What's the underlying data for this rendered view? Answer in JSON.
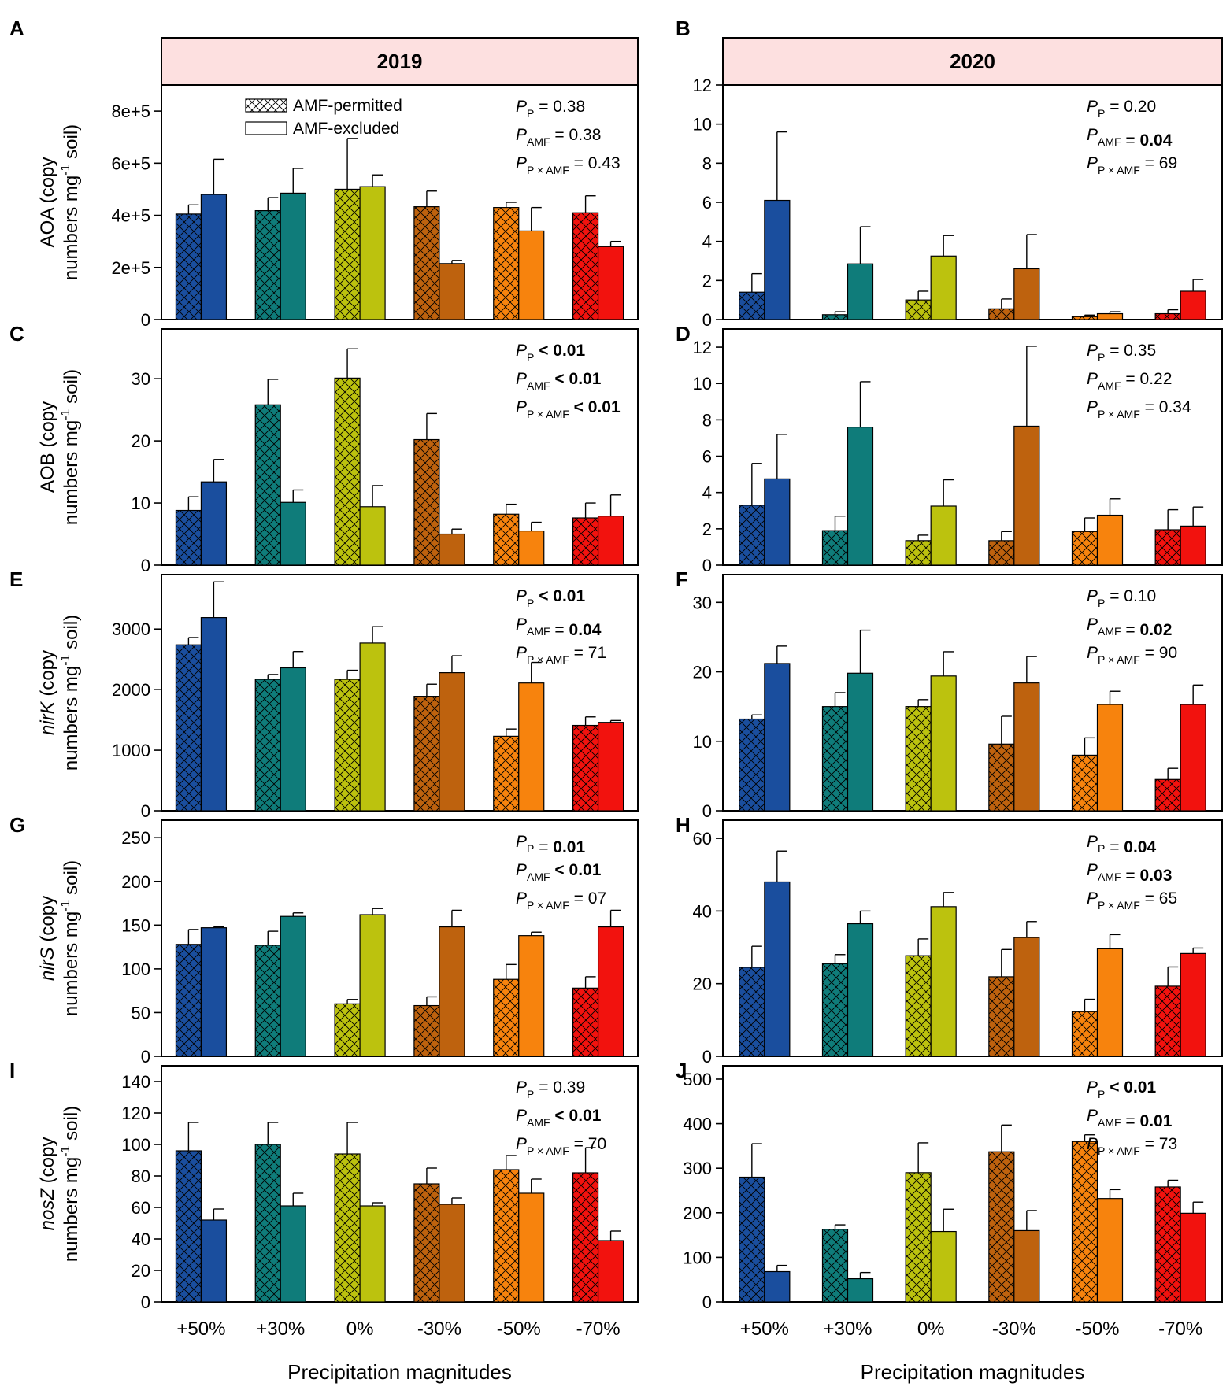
{
  "chart_data": [
    {
      "panel": "A",
      "type": "bar",
      "year": "2019",
      "ylim": [
        0,
        900000
      ],
      "yticks": [
        0,
        200000,
        400000,
        600000,
        800000
      ],
      "ytick_labels": [
        "0",
        "2e+5",
        "4e+5",
        "6e+5",
        "8e+5"
      ],
      "ylabel": {
        "pre": "",
        "italic": "",
        "post": "AOA (copy",
        "line2": "numbers mg",
        "sup": "-1",
        "tail": " soil)"
      },
      "categories": [
        "+50%",
        "+30%",
        "0%",
        "-30%",
        "-50%",
        "-70%"
      ],
      "series": [
        {
          "name": "AMF-permitted",
          "values": [
            405000,
            418000,
            500000,
            433000,
            430000,
            410000
          ],
          "errors": [
            35000,
            50000,
            195000,
            60000,
            20000,
            65000
          ]
        },
        {
          "name": "AMF-excluded",
          "values": [
            480000,
            485000,
            510000,
            215000,
            340000,
            280000
          ],
          "errors": [
            135000,
            95000,
            45000,
            12000,
            90000,
            20000
          ]
        }
      ],
      "stats": [
        {
          "sub": "P",
          "val": "0.38",
          "bold": false
        },
        {
          "sub": "AMF",
          "val": "0.38",
          "bold": false
        },
        {
          "sub": "P × AMF",
          "val": "0.43",
          "bold": false
        }
      ]
    },
    {
      "panel": "B",
      "type": "bar",
      "year": "2020",
      "ylim": [
        0,
        12
      ],
      "yticks": [
        0,
        2,
        4,
        6,
        8,
        10,
        12
      ],
      "ytick_labels": [
        "0",
        "2",
        "4",
        "6",
        "8",
        "10",
        "12"
      ],
      "categories": [
        "+50%",
        "+30%",
        "0%",
        "-30%",
        "-50%",
        "-70%"
      ],
      "series": [
        {
          "name": "AMF-permitted",
          "values": [
            1.4,
            0.25,
            1.0,
            0.55,
            0.15,
            0.3
          ],
          "errors": [
            0.95,
            0.15,
            0.45,
            0.5,
            0.08,
            0.2
          ]
        },
        {
          "name": "AMF-excluded",
          "values": [
            6.1,
            2.85,
            3.25,
            2.6,
            0.3,
            1.45
          ],
          "errors": [
            3.5,
            1.9,
            1.05,
            1.75,
            0.1,
            0.6
          ]
        }
      ],
      "stats": [
        {
          "sub": "P",
          "val": "0.20",
          "bold": false
        },
        {
          "sub": "AMF",
          "val": "0.04",
          "bold": true
        },
        {
          "sub": "P × AMF",
          "val": "69",
          "bold": false
        }
      ]
    },
    {
      "panel": "C",
      "type": "bar",
      "ylim": [
        0,
        38
      ],
      "yticks": [
        0,
        10,
        20,
        30
      ],
      "ytick_labels": [
        "0",
        "10",
        "20",
        "30"
      ],
      "ylabel": {
        "pre": "",
        "italic": "",
        "post": "AOB (copy",
        "line2": "numbers mg",
        "sup": "-1",
        "tail": " soil)"
      },
      "categories": [
        "+50%",
        "+30%",
        "0%",
        "-30%",
        "-50%",
        "-70%"
      ],
      "series": [
        {
          "name": "AMF-permitted",
          "values": [
            8.8,
            25.8,
            30.1,
            20.2,
            8.2,
            7.6
          ],
          "errors": [
            2.2,
            4.1,
            4.7,
            4.2,
            1.6,
            2.4
          ]
        },
        {
          "name": "AMF-excluded",
          "values": [
            13.4,
            10.1,
            9.4,
            5.0,
            5.5,
            7.9
          ],
          "errors": [
            3.6,
            2.0,
            3.4,
            0.8,
            1.4,
            3.4
          ]
        }
      ],
      "stats": [
        {
          "sub": "P",
          "val": "< 0.01",
          "bold": true,
          "op": ""
        },
        {
          "sub": "AMF",
          "val": "< 0.01",
          "bold": true,
          "op": ""
        },
        {
          "sub": "P × AMF",
          "val": "< 0.01",
          "bold": true,
          "op": ""
        }
      ]
    },
    {
      "panel": "D",
      "type": "bar",
      "ylim": [
        0,
        13
      ],
      "yticks": [
        0,
        2,
        4,
        6,
        8,
        10,
        12
      ],
      "ytick_labels": [
        "0",
        "2",
        "4",
        "6",
        "8",
        "10",
        "12"
      ],
      "categories": [
        "+50%",
        "+30%",
        "0%",
        "-30%",
        "-50%",
        "-70%"
      ],
      "series": [
        {
          "name": "AMF-permitted",
          "values": [
            3.3,
            1.9,
            1.35,
            1.35,
            1.85,
            1.95
          ],
          "errors": [
            2.3,
            0.8,
            0.3,
            0.5,
            0.75,
            1.1
          ]
        },
        {
          "name": "AMF-excluded",
          "values": [
            4.75,
            7.6,
            3.25,
            7.65,
            2.75,
            2.15
          ],
          "errors": [
            2.45,
            2.5,
            1.45,
            4.4,
            0.9,
            1.05
          ]
        }
      ],
      "stats": [
        {
          "sub": "P",
          "val": "0.35",
          "bold": false
        },
        {
          "sub": "AMF",
          "val": "0.22",
          "bold": false
        },
        {
          "sub": "P × AMF",
          "val": "0.34",
          "bold": false
        }
      ]
    },
    {
      "panel": "E",
      "type": "bar",
      "ylim": [
        0,
        3900
      ],
      "yticks": [
        0,
        1000,
        2000,
        3000
      ],
      "ytick_labels": [
        "0",
        "1000",
        "2000",
        "3000"
      ],
      "ylabel": {
        "pre": "",
        "italic": "nirK",
        "post": " (copy",
        "line2": "numbers mg",
        "sup": "-1",
        "tail": " soil)"
      },
      "categories": [
        "+50%",
        "+30%",
        "0%",
        "-30%",
        "-50%",
        "-70%"
      ],
      "series": [
        {
          "name": "AMF-permitted",
          "values": [
            2740,
            2170,
            2170,
            1890,
            1230,
            1410
          ],
          "errors": [
            120,
            80,
            150,
            200,
            120,
            140
          ]
        },
        {
          "name": "AMF-excluded",
          "values": [
            3190,
            2360,
            2770,
            2280,
            2110,
            1460
          ],
          "errors": [
            590,
            270,
            270,
            280,
            340,
            30
          ]
        }
      ],
      "stats": [
        {
          "sub": "P",
          "val": "< 0.01",
          "bold": true,
          "op": ""
        },
        {
          "sub": "AMF",
          "val": "0.04",
          "bold": true
        },
        {
          "sub": "P × AMF",
          "val": "71",
          "bold": false
        }
      ]
    },
    {
      "panel": "F",
      "type": "bar",
      "ylim": [
        0,
        34
      ],
      "yticks": [
        0,
        10,
        20,
        30
      ],
      "ytick_labels": [
        "0",
        "10",
        "20",
        "30"
      ],
      "categories": [
        "+50%",
        "+30%",
        "0%",
        "-30%",
        "-50%",
        "-70%"
      ],
      "series": [
        {
          "name": "AMF-permitted",
          "values": [
            13.2,
            15.0,
            15.0,
            9.6,
            8.0,
            4.5
          ],
          "errors": [
            0.6,
            2.0,
            1.0,
            4.0,
            2.5,
            1.6
          ]
        },
        {
          "name": "AMF-excluded",
          "values": [
            21.2,
            19.8,
            19.4,
            18.4,
            15.3,
            15.3
          ],
          "errors": [
            2.5,
            6.2,
            3.5,
            3.8,
            1.9,
            2.8
          ]
        }
      ],
      "stats": [
        {
          "sub": "P",
          "val": "0.10",
          "bold": false
        },
        {
          "sub": "AMF",
          "val": "0.02",
          "bold": true
        },
        {
          "sub": "P × AMF",
          "val": "90",
          "bold": false
        }
      ]
    },
    {
      "panel": "G",
      "type": "bar",
      "ylim": [
        0,
        270
      ],
      "yticks": [
        0,
        50,
        100,
        150,
        200,
        250
      ],
      "ytick_labels": [
        "0",
        "50",
        "100",
        "150",
        "200",
        "250"
      ],
      "ylabel": {
        "pre": "",
        "italic": "nirS",
        "post": " (copy",
        "line2": "numbers mg",
        "sup": "-1",
        "tail": " soil)"
      },
      "categories": [
        "+50%",
        "+30%",
        "0%",
        "-30%",
        "-50%",
        "-70%"
      ],
      "series": [
        {
          "name": "AMF-permitted",
          "values": [
            128,
            127,
            60,
            58,
            88,
            78
          ],
          "errors": [
            17,
            16,
            5,
            10,
            17,
            13
          ]
        },
        {
          "name": "AMF-excluded",
          "values": [
            147,
            160,
            162,
            148,
            138,
            148
          ],
          "errors": [
            1,
            4,
            7,
            19,
            4,
            19
          ]
        }
      ],
      "stats": [
        {
          "sub": "P",
          "val": "0.01",
          "bold": true
        },
        {
          "sub": "AMF",
          "val": "< 0.01",
          "bold": true,
          "op": ""
        },
        {
          "sub": "P × AMF",
          "val": "07",
          "bold": false
        }
      ]
    },
    {
      "panel": "H",
      "type": "bar",
      "ylim": [
        0,
        65
      ],
      "yticks": [
        0,
        20,
        40,
        60
      ],
      "ytick_labels": [
        "0",
        "20",
        "40",
        "60"
      ],
      "categories": [
        "+50%",
        "+30%",
        "0%",
        "-30%",
        "-50%",
        "-70%"
      ],
      "series": [
        {
          "name": "AMF-permitted",
          "values": [
            24.5,
            25.5,
            27.7,
            21.9,
            12.3,
            19.3
          ],
          "errors": [
            5.8,
            2.5,
            4.6,
            7.5,
            3.4,
            5.3
          ]
        },
        {
          "name": "AMF-excluded",
          "values": [
            48.0,
            36.5,
            41.2,
            32.7,
            29.6,
            28.3
          ],
          "errors": [
            8.5,
            3.5,
            3.9,
            4.4,
            3.9,
            1.5
          ]
        }
      ],
      "stats": [
        {
          "sub": "P",
          "val": "0.04",
          "bold": true
        },
        {
          "sub": "AMF",
          "val": "0.03",
          "bold": true
        },
        {
          "sub": "P × AMF",
          "val": "65",
          "bold": false
        }
      ]
    },
    {
      "panel": "I",
      "type": "bar",
      "ylim": [
        0,
        150
      ],
      "yticks": [
        0,
        20,
        40,
        60,
        80,
        100,
        120,
        140
      ],
      "ytick_labels": [
        "0",
        "20",
        "40",
        "60",
        "80",
        "100",
        "120",
        "140"
      ],
      "ylabel": {
        "pre": "",
        "italic": "nosZ",
        "post": " (copy",
        "line2": "numbers mg",
        "sup": "-1",
        "tail": " soil)"
      },
      "categories": [
        "+50%",
        "+30%",
        "0%",
        "-30%",
        "-50%",
        "-70%"
      ],
      "series": [
        {
          "name": "AMF-permitted",
          "values": [
            96,
            100,
            94,
            75,
            84,
            82
          ],
          "errors": [
            18,
            14,
            20,
            10,
            9,
            16
          ]
        },
        {
          "name": "AMF-excluded",
          "values": [
            52,
            61,
            61,
            62,
            69,
            39
          ],
          "errors": [
            7,
            8,
            2,
            4,
            9,
            6
          ]
        }
      ],
      "stats": [
        {
          "sub": "P",
          "val": "0.39",
          "bold": false
        },
        {
          "sub": "AMF",
          "val": "< 0.01",
          "bold": true,
          "op": ""
        },
        {
          "sub": "P × AMF",
          "val": "70",
          "bold": false
        }
      ]
    },
    {
      "panel": "J",
      "type": "bar",
      "ylim": [
        0,
        530
      ],
      "yticks": [
        0,
        100,
        200,
        300,
        400,
        500
      ],
      "ytick_labels": [
        "0",
        "100",
        "200",
        "300",
        "400",
        "500"
      ],
      "categories": [
        "+50%",
        "+30%",
        "0%",
        "-30%",
        "-50%",
        "-70%"
      ],
      "series": [
        {
          "name": "AMF-permitted",
          "values": [
            280,
            163,
            290,
            337,
            360,
            258
          ],
          "errors": [
            75,
            10,
            67,
            60,
            15,
            15
          ]
        },
        {
          "name": "AMF-excluded",
          "values": [
            68,
            52,
            158,
            160,
            232,
            199
          ],
          "errors": [
            14,
            14,
            50,
            45,
            20,
            25
          ]
        }
      ],
      "stats": [
        {
          "sub": "P",
          "val": "< 0.01",
          "bold": true,
          "op": ""
        },
        {
          "sub": "AMF",
          "val": "0.01",
          "bold": true
        },
        {
          "sub": "P × AMF",
          "val": "73",
          "bold": false
        }
      ]
    }
  ],
  "years": {
    "left": "2019",
    "right": "2020"
  },
  "legend": {
    "permitted": "AMF-permitted",
    "excluded": "AMF-excluded"
  },
  "stat_symbol": "P",
  "x_title": "Precipitation magnitudes",
  "colors": {
    "cat": [
      "#1a4e9e",
      "#0f7c7a",
      "#bcc20e",
      "#be620e",
      "#f7830d",
      "#f2120e"
    ],
    "header_fill": "#fde0e0",
    "frame": "#000000"
  }
}
